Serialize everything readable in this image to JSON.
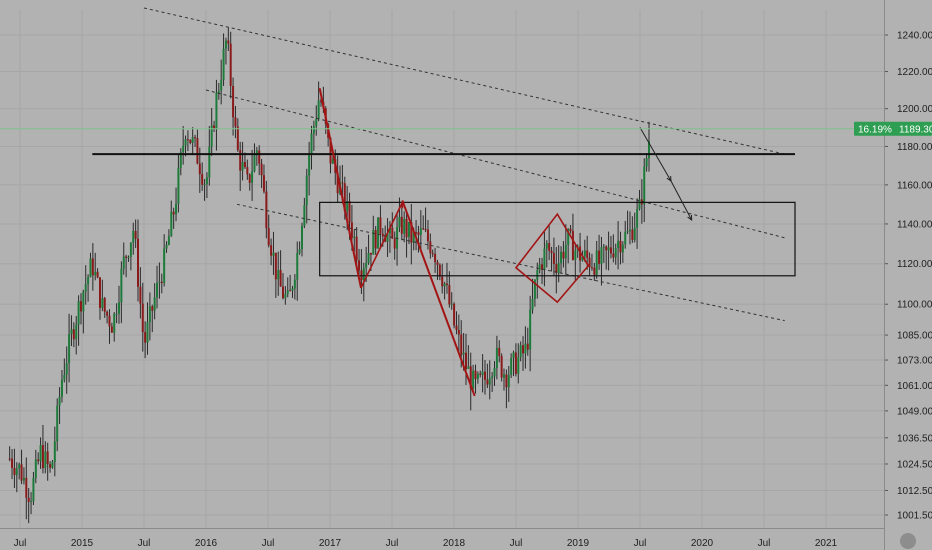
{
  "colors": {
    "background": "#b2b2b2",
    "grid": "#a6a6a6",
    "candle_up": "#1e7a3a",
    "candle_down": "#8a1a1a",
    "wick": "#2a2a2a",
    "trendline": "#333333",
    "pattern": "#a31515",
    "price_line": "#7ec28d",
    "price_label_bg": "#2e9e52",
    "box": "#111111",
    "hline": "#111111"
  },
  "price_label": {
    "percent": "16.19%",
    "price": "1189.30"
  },
  "chart_data": {
    "type": "candlestick",
    "title": "",
    "xlabel": "",
    "ylabel": "",
    "x_ticks": [
      "Jul",
      "2015",
      "Jul",
      "2016",
      "Jul",
      "2017",
      "Jul",
      "2018",
      "Jul",
      "2019",
      "Jul",
      "2020",
      "Jul",
      "2021"
    ],
    "x_tick_dates": [
      "2014-07",
      "2015-01",
      "2015-07",
      "2016-01",
      "2016-07",
      "2017-01",
      "2017-07",
      "2018-01",
      "2018-07",
      "2019-01",
      "2019-07",
      "2020-01",
      "2020-07",
      "2021-01"
    ],
    "y_ticks": [
      "1001.50",
      "1012.50",
      "1024.50",
      "1036.50",
      "1049.00",
      "1061.00",
      "1073.00",
      "1085.00",
      "1100.00",
      "1120.00",
      "1140.00",
      "1160.00",
      "1180.00",
      "1200.00",
      "1220.00",
      "1240.00"
    ],
    "y_scale": "log",
    "ylim": [
      995,
      1255
    ],
    "grid": true,
    "last_price": 1189.3,
    "last_change_percent": 16.19,
    "price_path": [
      [
        "2014-06",
        1027
      ],
      [
        "2014-07",
        1022
      ],
      [
        "2014-08",
        1010
      ],
      [
        "2014-09",
        1030
      ],
      [
        "2014-10",
        1020
      ],
      [
        "2014-11",
        1063
      ],
      [
        "2014-12",
        1085
      ],
      [
        "2015-01",
        1105
      ],
      [
        "2015-02",
        1120
      ],
      [
        "2015-03",
        1098
      ],
      [
        "2015-04",
        1090
      ],
      [
        "2015-05",
        1120
      ],
      [
        "2015-06",
        1138
      ],
      [
        "2015-07",
        1080
      ],
      [
        "2015-08",
        1102
      ],
      [
        "2015-09",
        1122
      ],
      [
        "2015-10",
        1150
      ],
      [
        "2015-11",
        1190
      ],
      [
        "2015-12",
        1178
      ],
      [
        "2016-01",
        1160
      ],
      [
        "2016-02",
        1205
      ],
      [
        "2016-03",
        1238
      ],
      [
        "2016-04",
        1178
      ],
      [
        "2016-05",
        1160
      ],
      [
        "2016-06",
        1180
      ],
      [
        "2016-07",
        1138
      ],
      [
        "2016-08",
        1110
      ],
      [
        "2016-09",
        1100
      ],
      [
        "2016-10",
        1130
      ],
      [
        "2016-11",
        1178
      ],
      [
        "2016-12",
        1208
      ],
      [
        "2017-01",
        1175
      ],
      [
        "2017-02",
        1158
      ],
      [
        "2017-03",
        1140
      ],
      [
        "2017-04",
        1118
      ],
      [
        "2017-05",
        1130
      ],
      [
        "2017-06",
        1140
      ],
      [
        "2017-07",
        1130
      ],
      [
        "2017-08",
        1140
      ],
      [
        "2017-09",
        1132
      ],
      [
        "2017-10",
        1135
      ],
      [
        "2017-11",
        1128
      ],
      [
        "2017-12",
        1112
      ],
      [
        "2018-01",
        1090
      ],
      [
        "2018-02",
        1072
      ],
      [
        "2018-03",
        1060
      ],
      [
        "2018-04",
        1064
      ],
      [
        "2018-05",
        1075
      ],
      [
        "2018-06",
        1066
      ],
      [
        "2018-07",
        1072
      ],
      [
        "2018-08",
        1078
      ],
      [
        "2018-09",
        1115
      ],
      [
        "2018-10",
        1128
      ],
      [
        "2018-11",
        1120
      ],
      [
        "2018-12",
        1132
      ],
      [
        "2019-01",
        1125
      ],
      [
        "2019-02",
        1122
      ],
      [
        "2019-03",
        1120
      ],
      [
        "2019-04",
        1126
      ],
      [
        "2019-05",
        1132
      ],
      [
        "2019-06",
        1135
      ],
      [
        "2019-07",
        1148
      ],
      [
        "2019-08",
        1189.3
      ]
    ],
    "annotations": {
      "upper_channel_line": [
        [
          "2015-07",
          1255
        ],
        [
          "2020-09",
          1176
        ]
      ],
      "middle_channel_line": [
        [
          "2016-01",
          1210
        ],
        [
          "2020-09",
          1133
        ]
      ],
      "lower_channel_line": [
        [
          "2016-04",
          1150
        ],
        [
          "2020-09",
          1092
        ]
      ],
      "horizontal_line": {
        "from": "2015-02",
        "to": "2020-10",
        "price": 1176
      },
      "range_box": {
        "from": "2016-12",
        "to": "2020-10",
        "top": 1151,
        "bottom": 1114
      },
      "descending_segments": [
        [
          [
            "2016-12",
            1211
          ],
          [
            "2017-04",
            1108
          ]
        ],
        [
          [
            "2017-08",
            1152
          ],
          [
            "2018-03",
            1056
          ]
        ]
      ],
      "triangle": [
        [
          "2017-04",
          1108
        ],
        [
          "2017-08",
          1151
        ],
        [
          "2017-08",
          1148
        ]
      ],
      "diamond": [
        [
          "2018-07",
          1118
        ],
        [
          "2018-11",
          1145
        ],
        [
          "2019-02",
          1119
        ],
        [
          "2018-11",
          1101
        ]
      ],
      "projection_arrow": [
        [
          "2019-07",
          1190
        ],
        [
          "2019-10",
          1162
        ],
        [
          "2019-12",
          1142
        ]
      ]
    }
  }
}
